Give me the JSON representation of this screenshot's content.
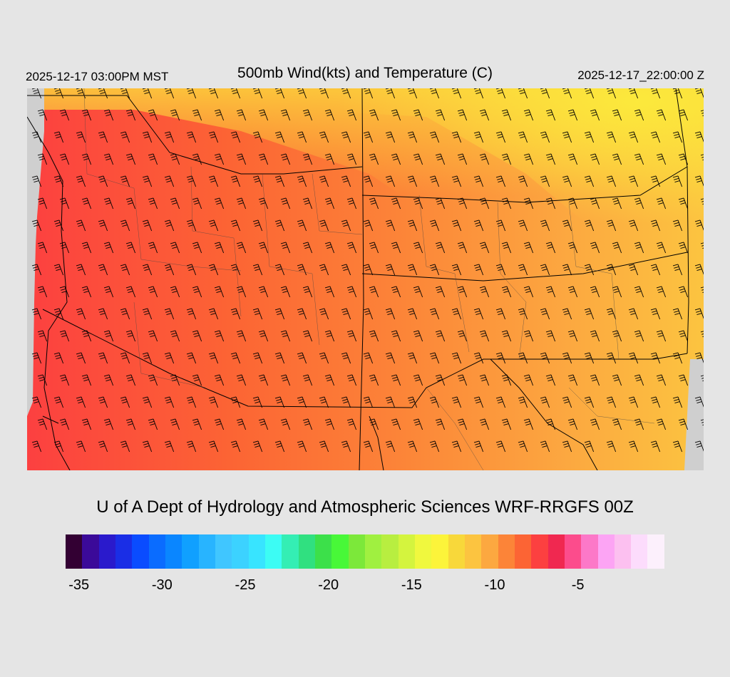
{
  "header": {
    "local_time": "2025-12-17 03:00PM MST",
    "title": "500mb Wind(kts) and Temperature (C)",
    "valid_time": "2025-12-17_22:00:00 Z"
  },
  "credit": "U of A Dept of Hydrology and Atmospheric Sciences WRF-RRGFS 00Z",
  "legend": {
    "colors": [
      "#330033",
      "#3b0a99",
      "#2a1acc",
      "#1a2ee6",
      "#0a4cff",
      "#0a6cff",
      "#0a86ff",
      "#10a0ff",
      "#28b4ff",
      "#40c6ff",
      "#3cd2ff",
      "#38e4ff",
      "#3cfcf4",
      "#34eeb4",
      "#30e080",
      "#3ce04a",
      "#48f838",
      "#7ce83a",
      "#a0f040",
      "#b8ee40",
      "#d4f43e",
      "#f0f83e",
      "#fcf43a",
      "#f8d83a",
      "#fcc440",
      "#fca840",
      "#fc8438",
      "#fc6434",
      "#fc4040",
      "#f02850",
      "#fc4c8c",
      "#fc78c8",
      "#fca4f4",
      "#fcc0f0",
      "#fcdcfc",
      "#fcf0fc"
    ],
    "tick_labels": [
      {
        "label": "-35",
        "index": 0.8
      },
      {
        "label": "-30",
        "index": 5.8
      },
      {
        "label": "-25",
        "index": 10.8
      },
      {
        "label": "-20",
        "index": 15.8
      },
      {
        "label": "-15",
        "index": 20.8
      },
      {
        "label": "-10",
        "index": 25.8
      },
      {
        "label": "-5",
        "index": 30.8
      }
    ]
  }
}
